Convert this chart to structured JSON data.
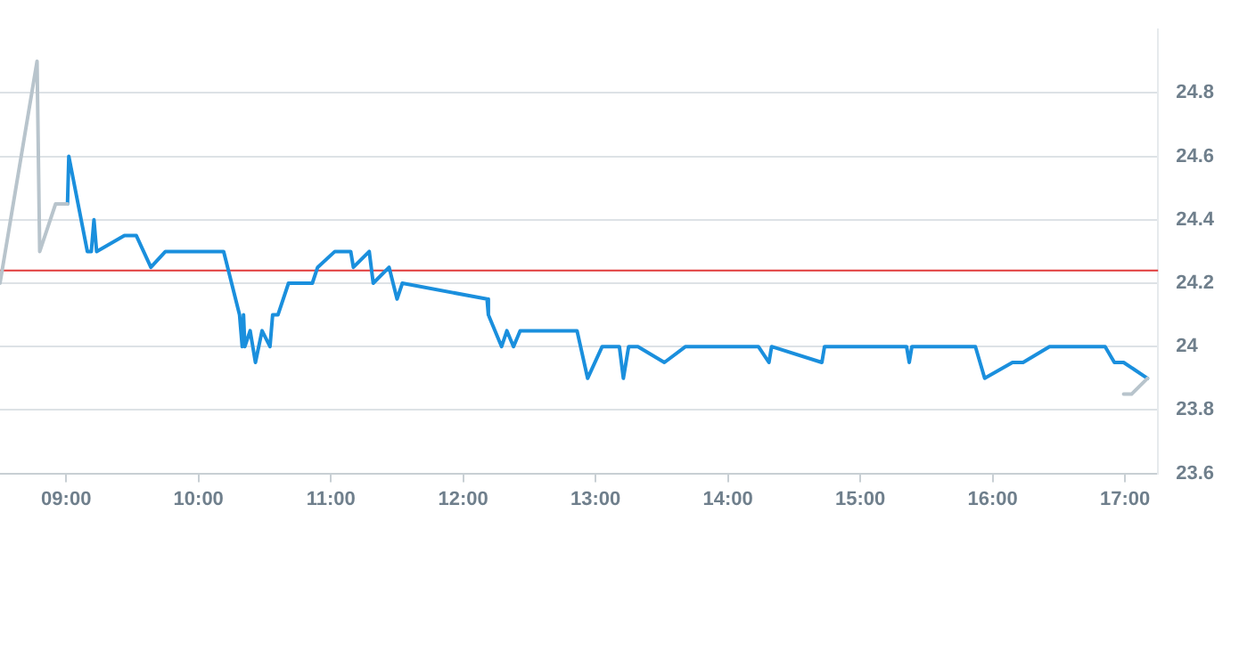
{
  "chart_data": {
    "type": "line",
    "xlim": [
      8.5,
      17.25
    ],
    "xticks": [
      {
        "value": 9,
        "label": "09:00"
      },
      {
        "value": 10,
        "label": "10:00"
      },
      {
        "value": 11,
        "label": "11:00"
      },
      {
        "value": 12,
        "label": "12:00"
      },
      {
        "value": 13,
        "label": "13:00"
      },
      {
        "value": 14,
        "label": "14:00"
      },
      {
        "value": 15,
        "label": "15:00"
      },
      {
        "value": 16,
        "label": "16:00"
      },
      {
        "value": 17,
        "label": "17:00"
      }
    ],
    "ylim": [
      23.6,
      25.0
    ],
    "yticks": [
      23.6,
      23.8,
      {
        "value": 24,
        "label": "24"
      },
      24.2,
      24.4,
      24.6,
      24.8
    ],
    "grid": "y",
    "legend": false,
    "marker": "none",
    "line_style": "solid",
    "ref_lines": [
      {
        "axis": "y",
        "value": 24.24,
        "color": "#e03a3a"
      }
    ],
    "series": [
      {
        "color": "#b8c4cc",
        "x": [
          8.5,
          8.78,
          8.8,
          8.92,
          9.01,
          9.5,
          16.99,
          17.05,
          17.17
        ],
        "values": [
          24.2,
          24.9,
          24.3,
          24.45,
          24.45,
          null,
          23.85,
          23.85,
          23.9
        ]
      },
      {
        "color": "#1a8fdd",
        "x": [
          9.01,
          9.02,
          9.16,
          9.19,
          9.21,
          9.23,
          9.44,
          9.53,
          9.64,
          9.75,
          10.19,
          10.31,
          10.33,
          10.34,
          10.35,
          10.39,
          10.43,
          10.48,
          10.54,
          10.56,
          10.6,
          10.68,
          10.86,
          10.9,
          11.03,
          11.15,
          11.17,
          11.29,
          11.32,
          11.44,
          11.5,
          11.54,
          12.18,
          12.19,
          12.29,
          12.33,
          12.38,
          12.43,
          12.86,
          12.94,
          13.05,
          13.18,
          13.21,
          13.25,
          13.32,
          13.52,
          13.68,
          14.23,
          14.31,
          14.33,
          14.71,
          14.73,
          15.35,
          15.37,
          15.39,
          15.87,
          15.94,
          16.15,
          16.23,
          16.43,
          16.85,
          16.92,
          16.99,
          17.17
        ],
        "values": [
          24.45,
          24.6,
          24.3,
          24.3,
          24.4,
          24.3,
          24.35,
          24.35,
          24.25,
          24.3,
          24.3,
          24.1,
          24.0,
          24.1,
          24.0,
          24.05,
          23.95,
          24.05,
          24.0,
          24.1,
          24.1,
          24.2,
          24.2,
          24.25,
          24.3,
          24.3,
          24.25,
          24.3,
          24.2,
          24.25,
          24.15,
          24.2,
          24.15,
          24.1,
          24.0,
          24.05,
          24.0,
          24.05,
          24.05,
          23.9,
          24.0,
          24.0,
          23.9,
          24.0,
          24.0,
          23.95,
          24.0,
          24.0,
          23.95,
          24.0,
          23.95,
          24.0,
          24.0,
          23.95,
          24.0,
          24.0,
          23.9,
          23.95,
          23.95,
          24.0,
          24.0,
          23.95,
          23.95,
          23.9
        ]
      }
    ]
  }
}
